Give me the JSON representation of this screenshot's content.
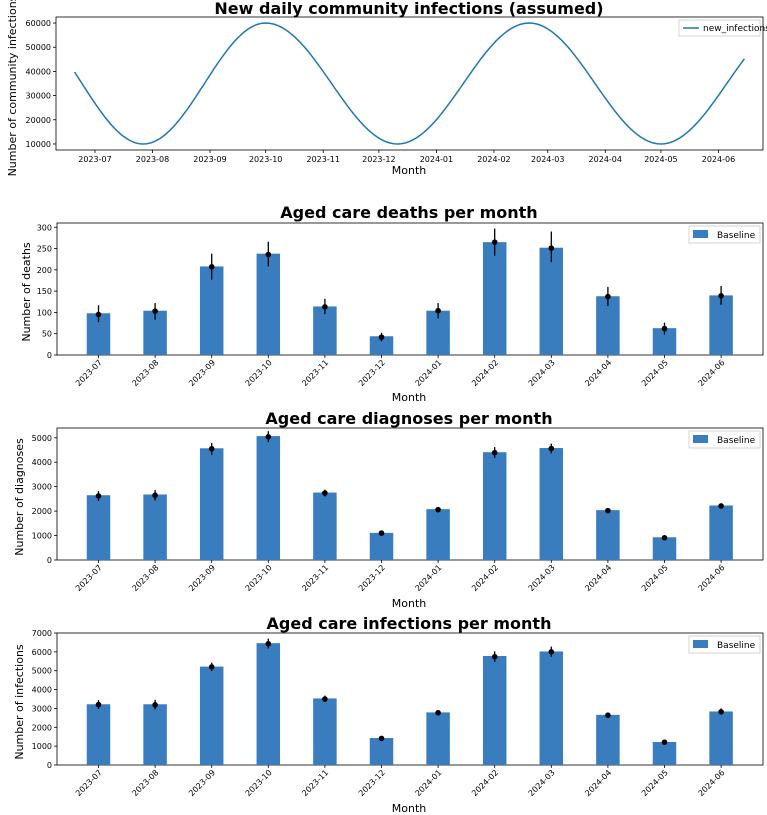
{
  "chart_data": [
    {
      "type": "line",
      "title": "New daily community infections (assumed)",
      "xlabel": "Month",
      "ylabel": "Number of community infections",
      "x_start": "2023-06-20",
      "x_end": "2024-06-15",
      "xlim": [
        "2023-06-10",
        "2024-06-25"
      ],
      "ylim": [
        7500,
        62500
      ],
      "y_ticks": [
        10000,
        20000,
        30000,
        40000,
        50000,
        60000
      ],
      "x_ticks": [
        "2023-07",
        "2023-08",
        "2023-09",
        "2023-10",
        "2023-11",
        "2023-12",
        "2024-01",
        "2024-02",
        "2024-03",
        "2024-04",
        "2024-05",
        "2024-06"
      ],
      "peaks": [
        "2023-10-01",
        "2024-02-20"
      ],
      "troughs": [
        "2023-07-27",
        "2023-12-11",
        "2024-05-01"
      ],
      "min_value": 10000,
      "max_value": 60000,
      "series": [
        {
          "name": "new_infections",
          "color": "#1f77b4"
        }
      ],
      "legend": "top-right"
    },
    {
      "type": "bar",
      "title": "Aged care deaths per month",
      "xlabel": "Month",
      "ylabel": "Number of deaths",
      "categories": [
        "2023-07",
        "2023-08",
        "2023-09",
        "2023-10",
        "2023-11",
        "2023-12",
        "2024-01",
        "2024-02",
        "2024-03",
        "2024-04",
        "2024-05",
        "2024-06"
      ],
      "series": [
        {
          "name": "Baseline",
          "color": "#3a7dbe",
          "values": [
            98,
            104,
            208,
            238,
            114,
            44,
            104,
            265,
            252,
            138,
            63,
            140
          ],
          "points": [
            95,
            103,
            207,
            236,
            113,
            42,
            104,
            265,
            251,
            137,
            62,
            139
          ],
          "error": [
            [
              77,
              117
            ],
            [
              83,
              122
            ],
            [
              177,
              238
            ],
            [
              208,
              266
            ],
            [
              96,
              132
            ],
            [
              32,
              52
            ],
            [
              86,
              122
            ],
            [
              233,
              297
            ],
            [
              218,
              290
            ],
            [
              115,
              160
            ],
            [
              48,
              76
            ],
            [
              118,
              162
            ]
          ]
        }
      ],
      "ylim": [
        0,
        310
      ],
      "y_ticks": [
        0,
        50,
        100,
        150,
        200,
        250,
        300
      ],
      "legend": "top-right"
    },
    {
      "type": "bar",
      "title": "Aged care diagnoses per month",
      "xlabel": "Month",
      "ylabel": "Number of diagnoses",
      "categories": [
        "2023-07",
        "2023-08",
        "2023-09",
        "2023-10",
        "2023-11",
        "2023-12",
        "2024-01",
        "2024-02",
        "2024-03",
        "2024-04",
        "2024-05",
        "2024-06"
      ],
      "series": [
        {
          "name": "Baseline",
          "color": "#3a7dbe",
          "values": [
            2650,
            2680,
            4570,
            5070,
            2760,
            1110,
            2080,
            4410,
            4580,
            2040,
            930,
            2230
          ],
          "points": [
            2620,
            2650,
            4550,
            5040,
            2740,
            1100,
            2060,
            4390,
            4560,
            2020,
            910,
            2210
          ],
          "error": [
            [
              2420,
              2820
            ],
            [
              2440,
              2870
            ],
            [
              4300,
              4790
            ],
            [
              4820,
              5270
            ],
            [
              2600,
              2880
            ],
            [
              1030,
              1180
            ],
            [
              1980,
              2150
            ],
            [
              4180,
              4620
            ],
            [
              4360,
              4760
            ],
            [
              1930,
              2110
            ],
            [
              860,
              970
            ],
            [
              2130,
              2300
            ]
          ]
        }
      ],
      "ylim": [
        0,
        5400
      ],
      "y_ticks": [
        0,
        1000,
        2000,
        3000,
        4000,
        5000
      ],
      "legend": "top-right"
    },
    {
      "type": "bar",
      "title": "Aged care infections per month",
      "xlabel": "Month",
      "ylabel": "Number of infections",
      "categories": [
        "2023-07",
        "2023-08",
        "2023-09",
        "2023-10",
        "2023-11",
        "2023-12",
        "2024-01",
        "2024-02",
        "2024-03",
        "2024-04",
        "2024-05",
        "2024-06"
      ],
      "series": [
        {
          "name": "Baseline",
          "color": "#3a7dbe",
          "values": [
            3220,
            3220,
            5220,
            6460,
            3530,
            1430,
            2790,
            5780,
            6020,
            2660,
            1220,
            2840
          ],
          "points": [
            3200,
            3190,
            5200,
            6430,
            3500,
            1410,
            2770,
            5740,
            6000,
            2640,
            1210,
            2820
          ],
          "error": [
            [
              2970,
              3440
            ],
            [
              2950,
              3460
            ],
            [
              4980,
              5430
            ],
            [
              6180,
              6700
            ],
            [
              3340,
              3680
            ],
            [
              1330,
              1500
            ],
            [
              2640,
              2910
            ],
            [
              5470,
              6030
            ],
            [
              5740,
              6280
            ],
            [
              2530,
              2770
            ],
            [
              1140,
              1300
            ],
            [
              2680,
              3000
            ]
          ]
        }
      ],
      "ylim": [
        0,
        7000
      ],
      "y_ticks": [
        0,
        1000,
        2000,
        3000,
        4000,
        5000,
        6000,
        7000
      ],
      "legend": "top-right"
    }
  ]
}
